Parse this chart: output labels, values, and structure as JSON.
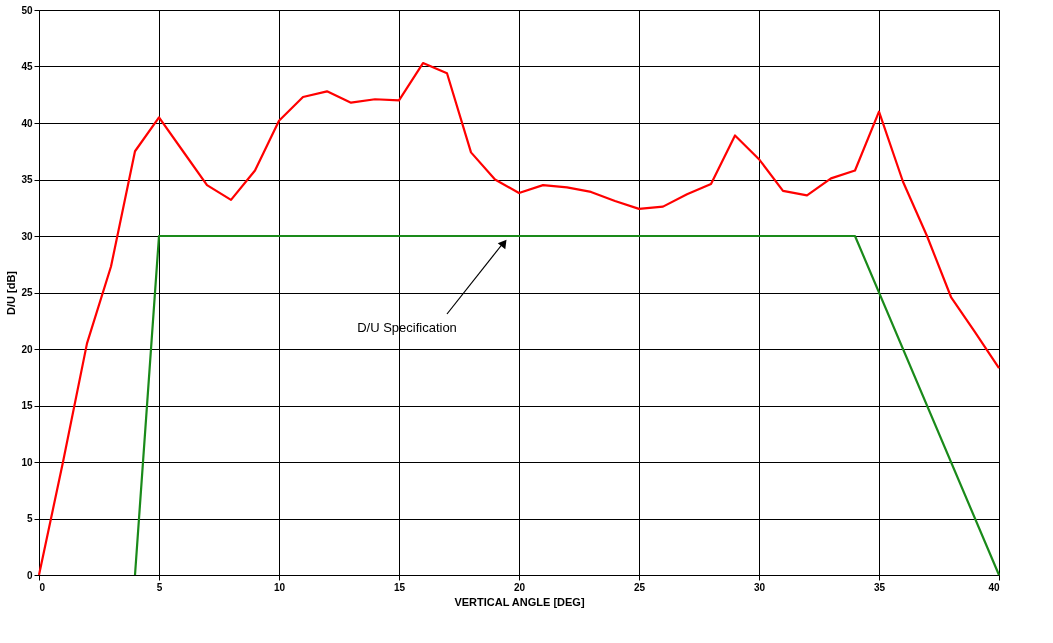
{
  "chart_data": {
    "type": "line",
    "xlabel": "VERTICAL ANGLE [DEG]",
    "ylabel": "D/U [dB]",
    "xlim": [
      0,
      40
    ],
    "xticks": [
      0,
      5,
      10,
      15,
      20,
      25,
      30,
      35,
      40
    ],
    "ylim": [
      0,
      50
    ],
    "yticks": [
      0,
      5,
      10,
      15,
      20,
      25,
      30,
      35,
      40,
      45,
      50
    ],
    "grid": true,
    "marker": "none",
    "line_style": "solid",
    "series": [
      {
        "color": "#ff0000",
        "x": [
          0,
          1,
          2,
          3,
          4,
          5,
          6,
          7,
          8,
          9,
          10,
          11,
          12,
          13,
          14,
          15,
          16,
          17,
          18,
          19,
          20,
          21,
          22,
          23,
          24,
          25,
          26,
          27,
          28,
          29,
          30,
          31,
          32,
          33,
          34,
          35,
          36,
          37,
          38,
          39,
          40
        ],
        "values": [
          0,
          10,
          20.5,
          27.3,
          37.5,
          40.5,
          37.5,
          34.5,
          33.2,
          35.8,
          40.2,
          42.3,
          42.8,
          41.8,
          42.1,
          42.0,
          45.3,
          44.4,
          37.4,
          35.0,
          33.8,
          34.5,
          34.3,
          33.9,
          33.1,
          32.4,
          32.6,
          33.7,
          34.6,
          38.9,
          36.8,
          34.0,
          33.6,
          35.1,
          35.8,
          41.0,
          34.8,
          30.0,
          24.6,
          21.5,
          18.3
        ]
      },
      {
        "color": "#1a8a1a",
        "x": [
          4,
          5,
          34,
          40
        ],
        "values": [
          0,
          30,
          30,
          0
        ]
      }
    ],
    "annotations": [
      {
        "text": "D/U Specification",
        "x": 19.5,
        "y": 30
      }
    ]
  }
}
